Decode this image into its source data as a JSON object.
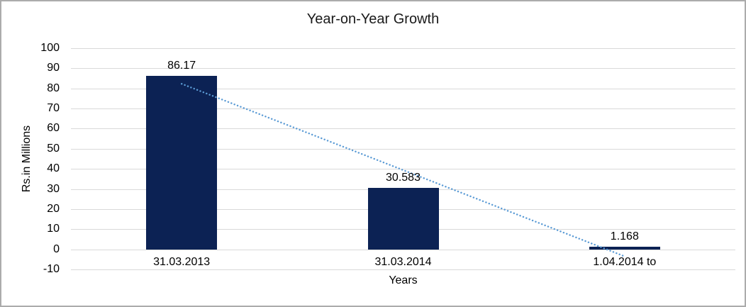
{
  "chart_data": {
    "type": "bar",
    "title": "Year-on-Year Growth",
    "categories": [
      "31.03.2013",
      "31.03.2014",
      "1.04.2014 to"
    ],
    "values": [
      86.17,
      30.583,
      1.168
    ],
    "data_labels": [
      "86.17",
      "30.583",
      "1.168"
    ],
    "xlabel": "Years",
    "ylabel": "Rs.in Millions",
    "ylim": [
      -10,
      100
    ],
    "yticks": [
      100,
      90,
      80,
      70,
      60,
      50,
      40,
      30,
      20,
      10,
      0,
      -10
    ],
    "grid": true,
    "legend": "none",
    "bar_color": "#0c2254",
    "gridline_color": "#d9d9d9",
    "frame_border_color": "#ababab",
    "trendline": {
      "type": "linear",
      "style": "dotted",
      "color": "#5b9bd5",
      "start_value": 82.3,
      "end_value": -3.5
    }
  }
}
